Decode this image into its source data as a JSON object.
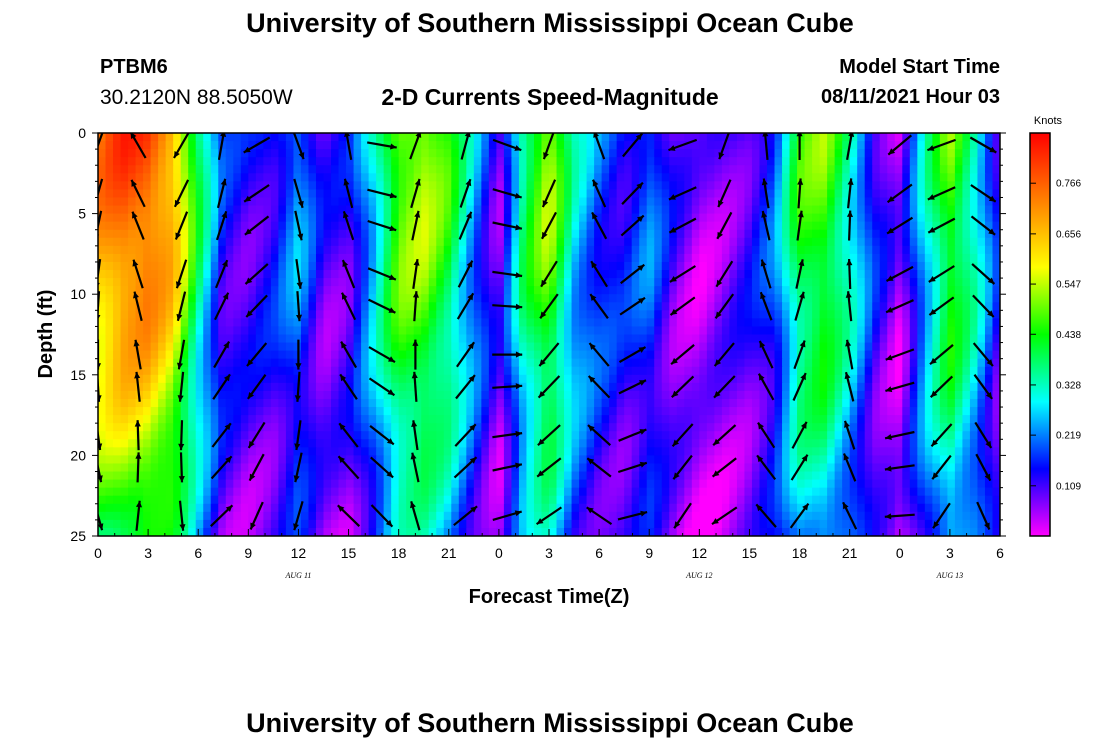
{
  "header": {
    "title": "University of Southern Mississippi Ocean Cube",
    "station_id": "PTBM6",
    "coordinates": "30.2120N  88.5050W",
    "plot_title": "2-D Currents Speed-Magnitude",
    "model_start_label": "Model Start Time",
    "model_start_value": "08/11/2021 Hour 03"
  },
  "footer": {
    "title": "University of Southern Mississippi Ocean Cube"
  },
  "chart_data": {
    "type": "heatmap",
    "title": "2-D Currents Speed-Magnitude",
    "xlabel": "Forecast Time(Z)",
    "ylabel": "Depth (ft)",
    "x_range_hours": [
      0,
      54
    ],
    "x_tick_labels": [
      "0",
      "3",
      "6",
      "9",
      "12",
      "15",
      "18",
      "21",
      "0",
      "3",
      "6",
      "9",
      "12",
      "15",
      "18",
      "21",
      "0",
      "3",
      "6"
    ],
    "y_range_ft": [
      0,
      25
    ],
    "y_tick_labels": [
      "0",
      "5",
      "10",
      "15",
      "20",
      "25"
    ],
    "y_inverted": true,
    "date_labels": [
      {
        "text": "AUG  11",
        "hour": 12
      },
      {
        "text": "AUG  12",
        "hour": 36
      },
      {
        "text": "AUG  13",
        "hour": 51
      }
    ],
    "colorbar": {
      "title": "Knots",
      "tick_values": [
        0.109,
        0.219,
        0.328,
        0.438,
        0.547,
        0.656,
        0.766
      ],
      "tick_labels": [
        "0.109",
        "0.219",
        "0.328",
        "0.438",
        "0.547",
        "0.656",
        "0.766"
      ],
      "range": [
        0.0,
        0.875
      ],
      "colors": [
        "#ff00ff",
        "#0000ff",
        "#00ffff",
        "#00ff00",
        "#ffff00",
        "#ff8000",
        "#ff0000"
      ]
    },
    "speed_profile_hours": [
      0,
      1.5,
      3,
      4.5,
      6,
      7.5,
      9,
      10.5,
      12,
      13.5,
      15,
      16.5,
      18,
      19.5,
      21,
      22.5,
      24,
      25.5,
      27,
      28.5,
      30,
      31.5,
      33,
      34.5,
      36,
      37.5,
      39,
      40.5,
      42,
      43.5,
      45,
      46.5,
      48,
      49.5,
      51,
      52.5,
      54
    ],
    "speed_profile_knots": [
      0.72,
      0.8,
      0.8,
      0.7,
      0.4,
      0.15,
      0.12,
      0.15,
      0.25,
      0.1,
      0.12,
      0.3,
      0.52,
      0.55,
      0.45,
      0.25,
      0.08,
      0.4,
      0.55,
      0.3,
      0.2,
      0.15,
      0.22,
      0.1,
      0.05,
      0.08,
      0.12,
      0.2,
      0.45,
      0.5,
      0.35,
      0.15,
      0.05,
      0.3,
      0.5,
      0.35,
      0.12
    ],
    "vector_depths_ft": [
      0,
      3,
      5,
      8,
      10,
      13,
      15,
      18,
      20,
      23
    ],
    "vector_hours": [
      0,
      2.4,
      5,
      7.4,
      9.5,
      12,
      15,
      17,
      19,
      22,
      24.5,
      27,
      30,
      32,
      35,
      37.5,
      40,
      42,
      45,
      48,
      50.5,
      53
    ],
    "vector_direction_deg": [
      200,
      330,
      210,
      10,
      240,
      160,
      350,
      100,
      20,
      15,
      110,
      200,
      340,
      40,
      250,
      200,
      355,
      0,
      10,
      230,
      250,
      120
    ]
  }
}
